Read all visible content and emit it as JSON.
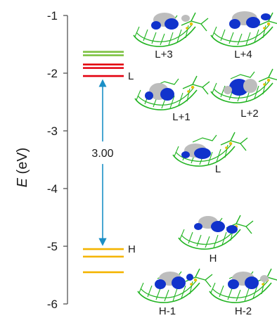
{
  "chart_data": {
    "type": "energy-level-diagram",
    "title": "",
    "ylabel_var": "E",
    "ylabel_unit": " (eV)",
    "ylim": [
      -6,
      -1
    ],
    "yticks": [
      -1,
      -2,
      -3,
      -4,
      -5,
      -6
    ],
    "grid": false,
    "levels": [
      {
        "energy": -1.63,
        "color": "#7dc242",
        "group": "unoccupied"
      },
      {
        "energy": -1.69,
        "color": "#7dc242",
        "group": "unoccupied"
      },
      {
        "energy": -1.85,
        "color": "#e3000f",
        "group": "unoccupied"
      },
      {
        "energy": -1.91,
        "color": "#e3000f",
        "group": "unoccupied"
      },
      {
        "energy": -2.05,
        "color": "#e3000f",
        "group": "unoccupied",
        "label": "L"
      },
      {
        "energy": -5.05,
        "color": "#f4b400",
        "group": "occupied",
        "label": "H"
      },
      {
        "energy": -5.18,
        "color": "#f4b400",
        "group": "occupied"
      },
      {
        "energy": -5.45,
        "color": "#f4b400",
        "group": "occupied"
      }
    ],
    "gap": {
      "value": "3.00",
      "from": -2.05,
      "to": -5.05,
      "color": "#1b8fc6"
    },
    "orbital_labels": [
      "L+3",
      "L+4",
      "L+1",
      "L+2",
      "L",
      "H",
      "H-1",
      "H-2"
    ]
  },
  "colors": {
    "axis": "#555555",
    "unoccupied_high": "#7dc242",
    "unoccupied": "#e3000f",
    "occupied": "#f4b400",
    "gap_arrow": "#1b8fc6",
    "molecule_framework": "#22b422",
    "lobe_blue": "#1133cc",
    "lobe_grey": "#bdbdbd",
    "sulfur": "#e6c200"
  }
}
